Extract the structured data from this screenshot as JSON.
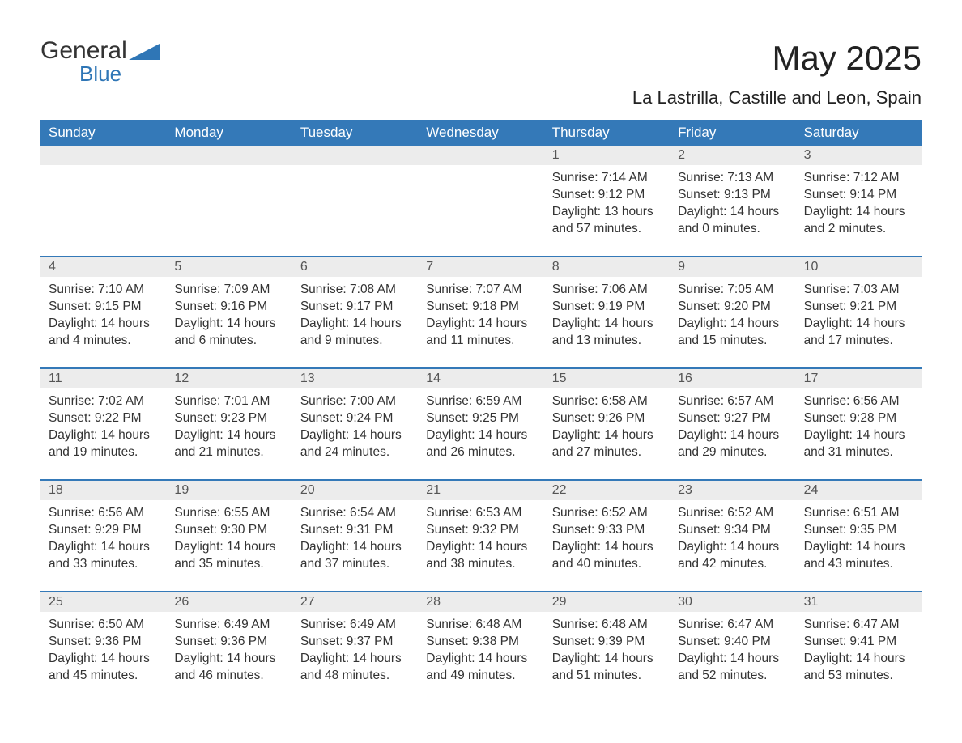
{
  "logo": {
    "word1": "General",
    "word2": "Blue"
  },
  "title": "May 2025",
  "subtitle": "La Lastrilla, Castille and Leon, Spain",
  "colors": {
    "header_bg": "#3479b8",
    "header_text": "#ffffff",
    "daynum_bg": "#ececec",
    "daynum_text": "#555555",
    "body_text": "#333333",
    "week_border": "#3479b8",
    "page_bg": "#ffffff",
    "logo_blue": "#2f76b6"
  },
  "typography": {
    "title_fontsize": 42,
    "subtitle_fontsize": 22,
    "weekday_fontsize": 17,
    "daynum_fontsize": 16,
    "cell_fontsize": 15.5,
    "font_family": "Arial"
  },
  "layout": {
    "columns": 7,
    "rows": 5,
    "first_day_column_index": 4
  },
  "weekdays": [
    "Sunday",
    "Monday",
    "Tuesday",
    "Wednesday",
    "Thursday",
    "Friday",
    "Saturday"
  ],
  "days": [
    {
      "n": "1",
      "sunrise": "7:14 AM",
      "sunset": "9:12 PM",
      "daylight": "13 hours and 57 minutes."
    },
    {
      "n": "2",
      "sunrise": "7:13 AM",
      "sunset": "9:13 PM",
      "daylight": "14 hours and 0 minutes."
    },
    {
      "n": "3",
      "sunrise": "7:12 AM",
      "sunset": "9:14 PM",
      "daylight": "14 hours and 2 minutes."
    },
    {
      "n": "4",
      "sunrise": "7:10 AM",
      "sunset": "9:15 PM",
      "daylight": "14 hours and 4 minutes."
    },
    {
      "n": "5",
      "sunrise": "7:09 AM",
      "sunset": "9:16 PM",
      "daylight": "14 hours and 6 minutes."
    },
    {
      "n": "6",
      "sunrise": "7:08 AM",
      "sunset": "9:17 PM",
      "daylight": "14 hours and 9 minutes."
    },
    {
      "n": "7",
      "sunrise": "7:07 AM",
      "sunset": "9:18 PM",
      "daylight": "14 hours and 11 minutes."
    },
    {
      "n": "8",
      "sunrise": "7:06 AM",
      "sunset": "9:19 PM",
      "daylight": "14 hours and 13 minutes."
    },
    {
      "n": "9",
      "sunrise": "7:05 AM",
      "sunset": "9:20 PM",
      "daylight": "14 hours and 15 minutes."
    },
    {
      "n": "10",
      "sunrise": "7:03 AM",
      "sunset": "9:21 PM",
      "daylight": "14 hours and 17 minutes."
    },
    {
      "n": "11",
      "sunrise": "7:02 AM",
      "sunset": "9:22 PM",
      "daylight": "14 hours and 19 minutes."
    },
    {
      "n": "12",
      "sunrise": "7:01 AM",
      "sunset": "9:23 PM",
      "daylight": "14 hours and 21 minutes."
    },
    {
      "n": "13",
      "sunrise": "7:00 AM",
      "sunset": "9:24 PM",
      "daylight": "14 hours and 24 minutes."
    },
    {
      "n": "14",
      "sunrise": "6:59 AM",
      "sunset": "9:25 PM",
      "daylight": "14 hours and 26 minutes."
    },
    {
      "n": "15",
      "sunrise": "6:58 AM",
      "sunset": "9:26 PM",
      "daylight": "14 hours and 27 minutes."
    },
    {
      "n": "16",
      "sunrise": "6:57 AM",
      "sunset": "9:27 PM",
      "daylight": "14 hours and 29 minutes."
    },
    {
      "n": "17",
      "sunrise": "6:56 AM",
      "sunset": "9:28 PM",
      "daylight": "14 hours and 31 minutes."
    },
    {
      "n": "18",
      "sunrise": "6:56 AM",
      "sunset": "9:29 PM",
      "daylight": "14 hours and 33 minutes."
    },
    {
      "n": "19",
      "sunrise": "6:55 AM",
      "sunset": "9:30 PM",
      "daylight": "14 hours and 35 minutes."
    },
    {
      "n": "20",
      "sunrise": "6:54 AM",
      "sunset": "9:31 PM",
      "daylight": "14 hours and 37 minutes."
    },
    {
      "n": "21",
      "sunrise": "6:53 AM",
      "sunset": "9:32 PM",
      "daylight": "14 hours and 38 minutes."
    },
    {
      "n": "22",
      "sunrise": "6:52 AM",
      "sunset": "9:33 PM",
      "daylight": "14 hours and 40 minutes."
    },
    {
      "n": "23",
      "sunrise": "6:52 AM",
      "sunset": "9:34 PM",
      "daylight": "14 hours and 42 minutes."
    },
    {
      "n": "24",
      "sunrise": "6:51 AM",
      "sunset": "9:35 PM",
      "daylight": "14 hours and 43 minutes."
    },
    {
      "n": "25",
      "sunrise": "6:50 AM",
      "sunset": "9:36 PM",
      "daylight": "14 hours and 45 minutes."
    },
    {
      "n": "26",
      "sunrise": "6:49 AM",
      "sunset": "9:36 PM",
      "daylight": "14 hours and 46 minutes."
    },
    {
      "n": "27",
      "sunrise": "6:49 AM",
      "sunset": "9:37 PM",
      "daylight": "14 hours and 48 minutes."
    },
    {
      "n": "28",
      "sunrise": "6:48 AM",
      "sunset": "9:38 PM",
      "daylight": "14 hours and 49 minutes."
    },
    {
      "n": "29",
      "sunrise": "6:48 AM",
      "sunset": "9:39 PM",
      "daylight": "14 hours and 51 minutes."
    },
    {
      "n": "30",
      "sunrise": "6:47 AM",
      "sunset": "9:40 PM",
      "daylight": "14 hours and 52 minutes."
    },
    {
      "n": "31",
      "sunrise": "6:47 AM",
      "sunset": "9:41 PM",
      "daylight": "14 hours and 53 minutes."
    }
  ],
  "labels": {
    "sunrise": "Sunrise: ",
    "sunset": "Sunset: ",
    "daylight": "Daylight: "
  }
}
